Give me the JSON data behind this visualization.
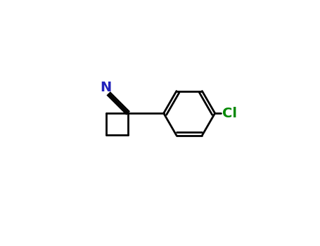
{
  "background": "#ffffff",
  "bond_color": "#000000",
  "N_color": "#2222bb",
  "Cl_color": "#008800",
  "bond_lw": 2.0,
  "figsize": [
    4.55,
    3.5
  ],
  "dpi": 100,
  "N_label": "N",
  "Cl_label": "Cl"
}
